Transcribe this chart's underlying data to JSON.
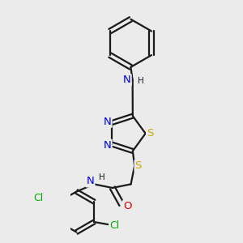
{
  "background_color": "#ebebeb",
  "bond_color": "#1a1a1a",
  "bond_width": 1.6,
  "atom_colors": {
    "N": "#0000ee",
    "S": "#ccaa00",
    "O": "#ee0000",
    "Cl": "#00aa00",
    "C": "#1a1a1a",
    "H": "#1a1a1a"
  },
  "font_size": 9.5,
  "figsize": [
    3.0,
    3.0
  ],
  "dpi": 100
}
